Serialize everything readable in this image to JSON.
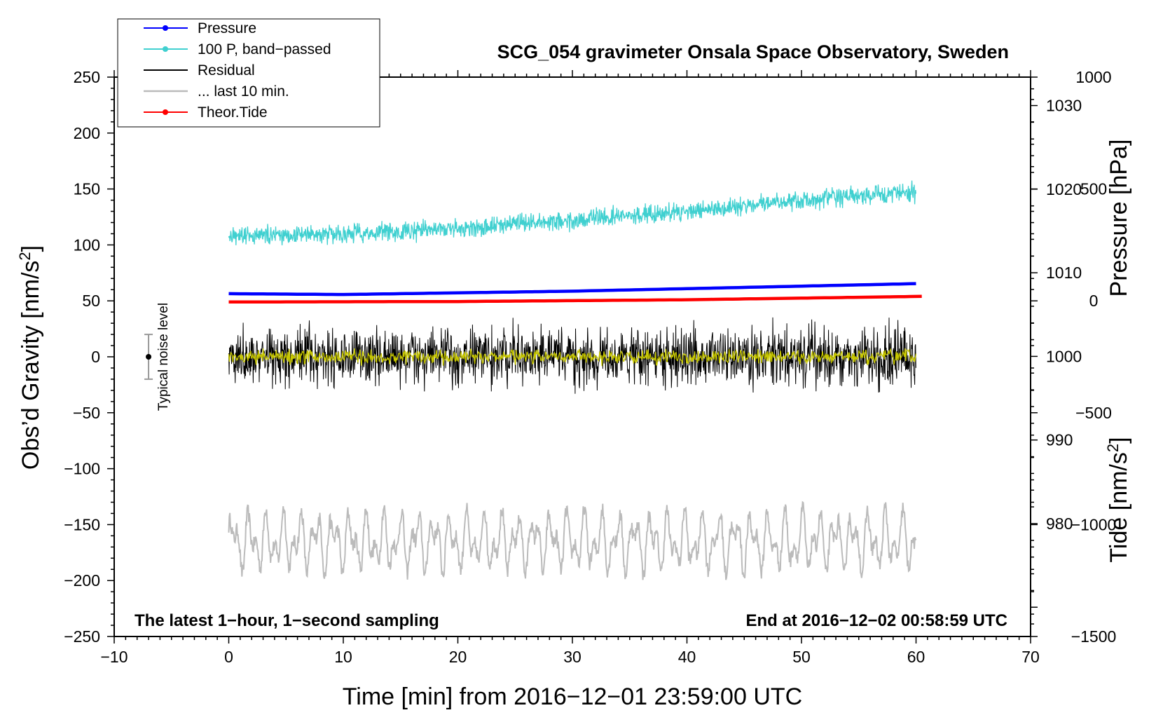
{
  "chart_data": {
    "type": "line",
    "title": "SCG_054 gravimeter Onsala Space Observatory, Sweden",
    "xlabel": "Time [min] from 2016−12−01 23:59:00 UTC",
    "ylabel_left": "Obs’d Gravity [nm/s²]",
    "ylabel_left_main": "Obs’d Gravity [nm/s",
    "ylabel_left_sup": "2",
    "ylabel_left_end": "]",
    "ylabel_right_pressure": "Pressure [hPa]",
    "ylabel_right_tide_main": "Tide [nm/s",
    "ylabel_right_tide_sup": "2",
    "ylabel_right_tide_end": "]",
    "xlim": [
      -10,
      70
    ],
    "ylim_left": [
      -250,
      250
    ],
    "pressure_axis": {
      "ylim": [
        966.5,
        1033.4
      ],
      "ticks": [
        980,
        990,
        1000,
        1010,
        1020,
        1030
      ]
    },
    "tide_axis": {
      "ylim": [
        -1500,
        1000
      ],
      "ticks": [
        1000,
        500,
        0,
        -500,
        -1000,
        -1500
      ]
    },
    "x_ticks": [
      -10,
      0,
      10,
      20,
      30,
      40,
      50,
      60,
      70
    ],
    "x_tick_labels": [
      "−10",
      "0",
      "10",
      "20",
      "30",
      "40",
      "50",
      "60",
      "70"
    ],
    "y_ticks_left": [
      250,
      200,
      150,
      100,
      50,
      0,
      -50,
      -100,
      -150,
      -200,
      -250
    ],
    "y_tick_labels_left": [
      "250",
      "200",
      "150",
      "100",
      "50",
      "0",
      "−50",
      "−100",
      "−150",
      "−200",
      "−250"
    ],
    "tide_tick_labels": [
      "1000",
      "500",
      "0",
      "−500",
      "−1000",
      "−1500"
    ],
    "series": [
      {
        "name": "Pressure",
        "axis": "pressure",
        "color": "#0000ff",
        "style": "thick-line",
        "x": [
          0,
          10,
          20,
          30,
          40,
          50,
          60
        ],
        "values": [
          1007.5,
          1007.4,
          1007.6,
          1007.8,
          1008.1,
          1008.4,
          1008.7
        ]
      },
      {
        "name": "100 P, band−passed",
        "axis": "left",
        "color": "#40d0d0",
        "style": "noisy",
        "x": [
          0,
          10,
          20,
          30,
          40,
          50,
          60
        ],
        "values": [
          108,
          110,
          115,
          122,
          130,
          140,
          147
        ],
        "noise_amplitude": 12
      },
      {
        "name": "Residual",
        "axis": "left",
        "color": "#000000",
        "style": "noisy",
        "x": [
          0,
          60
        ],
        "values": [
          0,
          0
        ],
        "noise_amplitude": 38
      },
      {
        "name": "Residual (smoothed)",
        "axis": "left",
        "color": "#c8c800",
        "style": "noisy",
        "x": [
          0,
          60
        ],
        "values": [
          0,
          0
        ],
        "noise_amplitude": 9
      },
      {
        "name": "... last 10 min.",
        "axis": "left",
        "color": "#bbbbbb",
        "style": "oscillating",
        "x": [
          0,
          60
        ],
        "values": [
          -165,
          -165
        ],
        "noise_amplitude": 28
      },
      {
        "name": "Theor.Tide",
        "axis": "tide",
        "color": "#ff0000",
        "style": "thick-line",
        "x": [
          0,
          20,
          40,
          60.5
        ],
        "values": [
          -5,
          -3,
          5,
          20
        ]
      }
    ],
    "legend": [
      {
        "label": "Pressure",
        "color": "#0000ff",
        "marker": true
      },
      {
        "label": "100 P, band−passed",
        "color": "#40d0d0",
        "marker": true
      },
      {
        "label": "Residual",
        "color": "#000000",
        "marker": false
      },
      {
        "label": "... last 10 min.",
        "color": "#bbbbbb",
        "marker": false
      },
      {
        "label": "Theor.Tide",
        "color": "#ff0000",
        "marker": true
      }
    ],
    "legend_position": "top-left",
    "typical_noise": {
      "label": "Typical noise level",
      "x": -7,
      "center": 0,
      "halfwidth": 20
    },
    "annotation_left": "The latest 1−hour, 1−second sampling",
    "annotation_right": "End at 2016−12−02 00:58:59 UTC"
  }
}
